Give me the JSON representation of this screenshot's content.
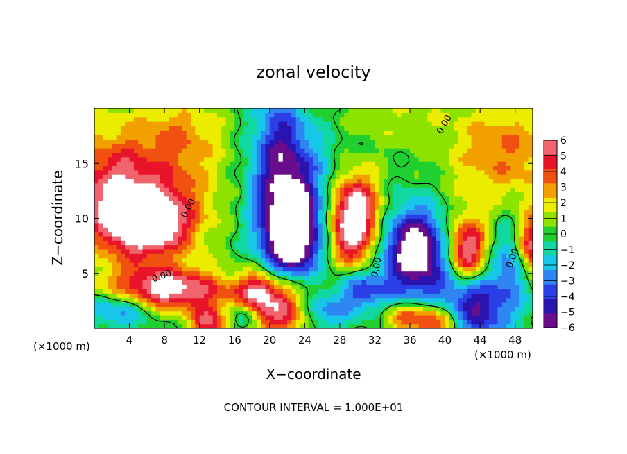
{
  "chart_data": {
    "type": "heatmap",
    "title": "zonal velocity",
    "xlabel": "X−coordinate",
    "ylabel": "Z−coordinate",
    "x_unit_left": "(×1000 m)",
    "x_unit_right": "(×1000 m)",
    "xlim": [
      0,
      50
    ],
    "ylim": [
      0,
      20
    ],
    "x_ticks": [
      4,
      8,
      12,
      16,
      20,
      24,
      28,
      32,
      36,
      40,
      44,
      48
    ],
    "y_ticks": [
      5,
      10,
      15
    ],
    "footnote": "CONTOUR INTERVAL = 1.000E+01",
    "colorbar": {
      "range": [
        -6,
        6
      ],
      "ticks": [
        6,
        5,
        4,
        3,
        2,
        1,
        0,
        -1,
        -2,
        -3,
        -4,
        -5,
        -6
      ],
      "colors": [
        "#6a0d8c",
        "#2a14b0",
        "#2a3fe6",
        "#2f86f2",
        "#17c6e8",
        "#10d8a0",
        "#20d030",
        "#8ee200",
        "#ecec00",
        "#f2a000",
        "#f05010",
        "#e8142a",
        "#f0646e"
      ]
    },
    "contour_labels": [
      {
        "text": "0.00",
        "x": 11.0,
        "z": 10.8,
        "rot": -62
      },
      {
        "text": "0.00",
        "x": 7.8,
        "z": 4.5,
        "rot": -20
      },
      {
        "text": "0.00",
        "x": 32.5,
        "z": 5.5,
        "rot": -78
      },
      {
        "text": "0.00",
        "x": 48.0,
        "z": 6.3,
        "rot": -70
      },
      {
        "text": "0.00",
        "x": 40.2,
        "z": 18.4,
        "rot": -60
      }
    ],
    "features": [
      {
        "sign": 1,
        "x": 5,
        "z": 14,
        "amp": 3.5,
        "sx": 7,
        "sz": 4
      },
      {
        "sign": 1,
        "x": 6,
        "z": 9.5,
        "amp": 7.5,
        "sx": 3.5,
        "sz": 2.2
      },
      {
        "sign": 1,
        "x": 2,
        "z": 12,
        "amp": 2.5,
        "sx": 3,
        "sz": 3
      },
      {
        "sign": 1,
        "x": 8,
        "z": 3.5,
        "amp": 7,
        "sx": 5,
        "sz": 1.4
      },
      {
        "sign": -1,
        "x": 3,
        "z": 2.0,
        "amp": 4,
        "sx": 3,
        "sz": 1.2
      },
      {
        "sign": 1,
        "x": 21,
        "z": 2.0,
        "amp": 6,
        "sx": 3,
        "sz": 2.2
      },
      {
        "sign": 1,
        "x": 13,
        "z": 0.6,
        "amp": 5,
        "sx": 1.3,
        "sz": 1
      },
      {
        "sign": -1,
        "x": 22,
        "z": 12.5,
        "amp": 5.5,
        "sx": 3,
        "sz": 4
      },
      {
        "sign": -1,
        "x": 22.5,
        "z": 8.0,
        "amp": 7,
        "sx": 2.2,
        "sz": 2.8
      },
      {
        "sign": -1,
        "x": 21,
        "z": 18,
        "amp": 2.5,
        "sx": 2,
        "sz": 3
      },
      {
        "sign": 1,
        "x": 29.5,
        "z": 9.0,
        "amp": 7,
        "sx": 2,
        "sz": 2.5
      },
      {
        "sign": 1,
        "x": 30,
        "z": 12,
        "amp": 3,
        "sx": 2,
        "sz": 2
      },
      {
        "sign": -1,
        "x": 36.5,
        "z": 7.0,
        "amp": 7.5,
        "sx": 2.6,
        "sz": 2.8
      },
      {
        "sign": -1,
        "x": 30.5,
        "z": 3.5,
        "amp": 4,
        "sx": 2,
        "sz": 1.3
      },
      {
        "sign": 1,
        "x": 42.5,
        "z": 7.0,
        "amp": 6.5,
        "sx": 1.6,
        "sz": 2.2
      },
      {
        "sign": -1,
        "x": 43,
        "z": 2.0,
        "amp": 6,
        "sx": 3,
        "sz": 2.2
      },
      {
        "sign": -1,
        "x": 48,
        "z": 6.5,
        "amp": 3.5,
        "sx": 1.6,
        "sz": 2.5
      },
      {
        "sign": 1,
        "x": 50,
        "z": 7.5,
        "amp": 7,
        "sx": 1.4,
        "sz": 2
      },
      {
        "sign": 1,
        "x": 47,
        "z": 16,
        "amp": 3.2,
        "sx": 5,
        "sz": 3.5
      },
      {
        "sign": 1,
        "x": 39,
        "z": 0.8,
        "amp": 6,
        "sx": 2.2,
        "sz": 1.2
      },
      {
        "sign": 1,
        "x": 35,
        "z": 1.0,
        "amp": 3,
        "sx": 1.5,
        "sz": 1
      },
      {
        "sign": -1,
        "x": 26,
        "z": 1.5,
        "amp": 3.5,
        "sx": 2,
        "sz": 1.3
      },
      {
        "sign": -1,
        "x": 17,
        "z": 1.0,
        "amp": 3,
        "sx": 1.2,
        "sz": 1
      },
      {
        "sign": 1,
        "x": 18.5,
        "z": 3.5,
        "amp": 3,
        "sx": 1.5,
        "sz": 1
      },
      {
        "sign": 1,
        "x": 34,
        "z": 19.5,
        "amp": 1.2,
        "sx": 4,
        "sz": 2
      },
      {
        "sign": 1,
        "x": 10,
        "z": 18,
        "amp": 1.5,
        "sx": 3,
        "sz": 2
      }
    ]
  }
}
